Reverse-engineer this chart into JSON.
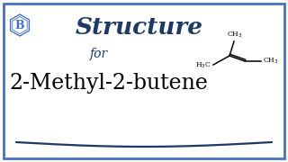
{
  "bg_color": "#ffffff",
  "border_color": "#4472c4",
  "border_linewidth": 2.0,
  "title_text": "Structure",
  "title_color": "#1f3864",
  "title_fontsize": 19,
  "for_text": "for",
  "for_color": "#1f3864",
  "for_fontsize": 10,
  "compound_text": "2-Methyl-2-butene",
  "compound_fontsize": 17,
  "compound_color": "#000000",
  "logo_color": "#4472c4",
  "wave_color": "#1f3864",
  "struct_color": "#000000"
}
